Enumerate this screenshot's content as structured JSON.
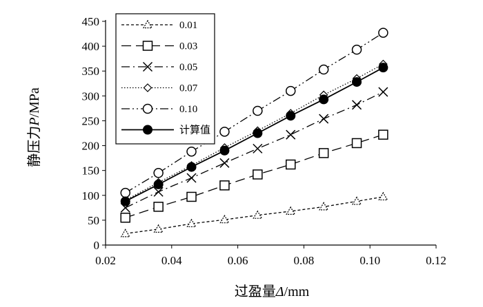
{
  "chart_data": {
    "type": "line",
    "title": "",
    "xlabel_cjk": "过盈量",
    "xlabel_symbol": "Δ",
    "xlabel_unit": "/mm",
    "ylabel_cjk": "静压力",
    "ylabel_symbol": "P",
    "ylabel_unit": "/MPa",
    "xlim": [
      0.02,
      0.12
    ],
    "ylim": [
      0,
      450
    ],
    "xticks": [
      "0.02",
      "0.04",
      "0.06",
      "0.08",
      "0.10",
      "0.12"
    ],
    "yticks": [
      "0",
      "50",
      "100",
      "150",
      "200",
      "250",
      "300",
      "350",
      "400",
      "450"
    ],
    "x": [
      0.026,
      0.036,
      0.046,
      0.056,
      0.066,
      0.076,
      0.086,
      0.096,
      0.104
    ],
    "legend_position": "top-left",
    "grid": false,
    "series": [
      {
        "name": "0.01",
        "marker": "triangle",
        "line_style": "dashed-short",
        "values": [
          23,
          32,
          43,
          51,
          60,
          68,
          77,
          88,
          97
        ]
      },
      {
        "name": "0.03",
        "marker": "square",
        "line_style": "dashed-long",
        "values": [
          55,
          77,
          97,
          120,
          142,
          162,
          185,
          205,
          222
        ]
      },
      {
        "name": "0.05",
        "marker": "x",
        "line_style": "dash-dot",
        "values": [
          75,
          107,
          135,
          165,
          194,
          222,
          254,
          282,
          308
        ]
      },
      {
        "name": "0.07",
        "marker": "diamond",
        "line_style": "dotted",
        "values": [
          90,
          126,
          160,
          196,
          230,
          265,
          302,
          335,
          364
        ]
      },
      {
        "name": "0.10",
        "marker": "circle-open",
        "line_style": "dash-dot-dot",
        "values": [
          105,
          145,
          188,
          228,
          270,
          310,
          353,
          393,
          427
        ]
      },
      {
        "name": "计算值",
        "marker": "circle-filled",
        "line_style": "solid",
        "values": [
          88,
          122,
          157,
          190,
          225,
          260,
          293,
          328,
          357
        ]
      }
    ]
  }
}
